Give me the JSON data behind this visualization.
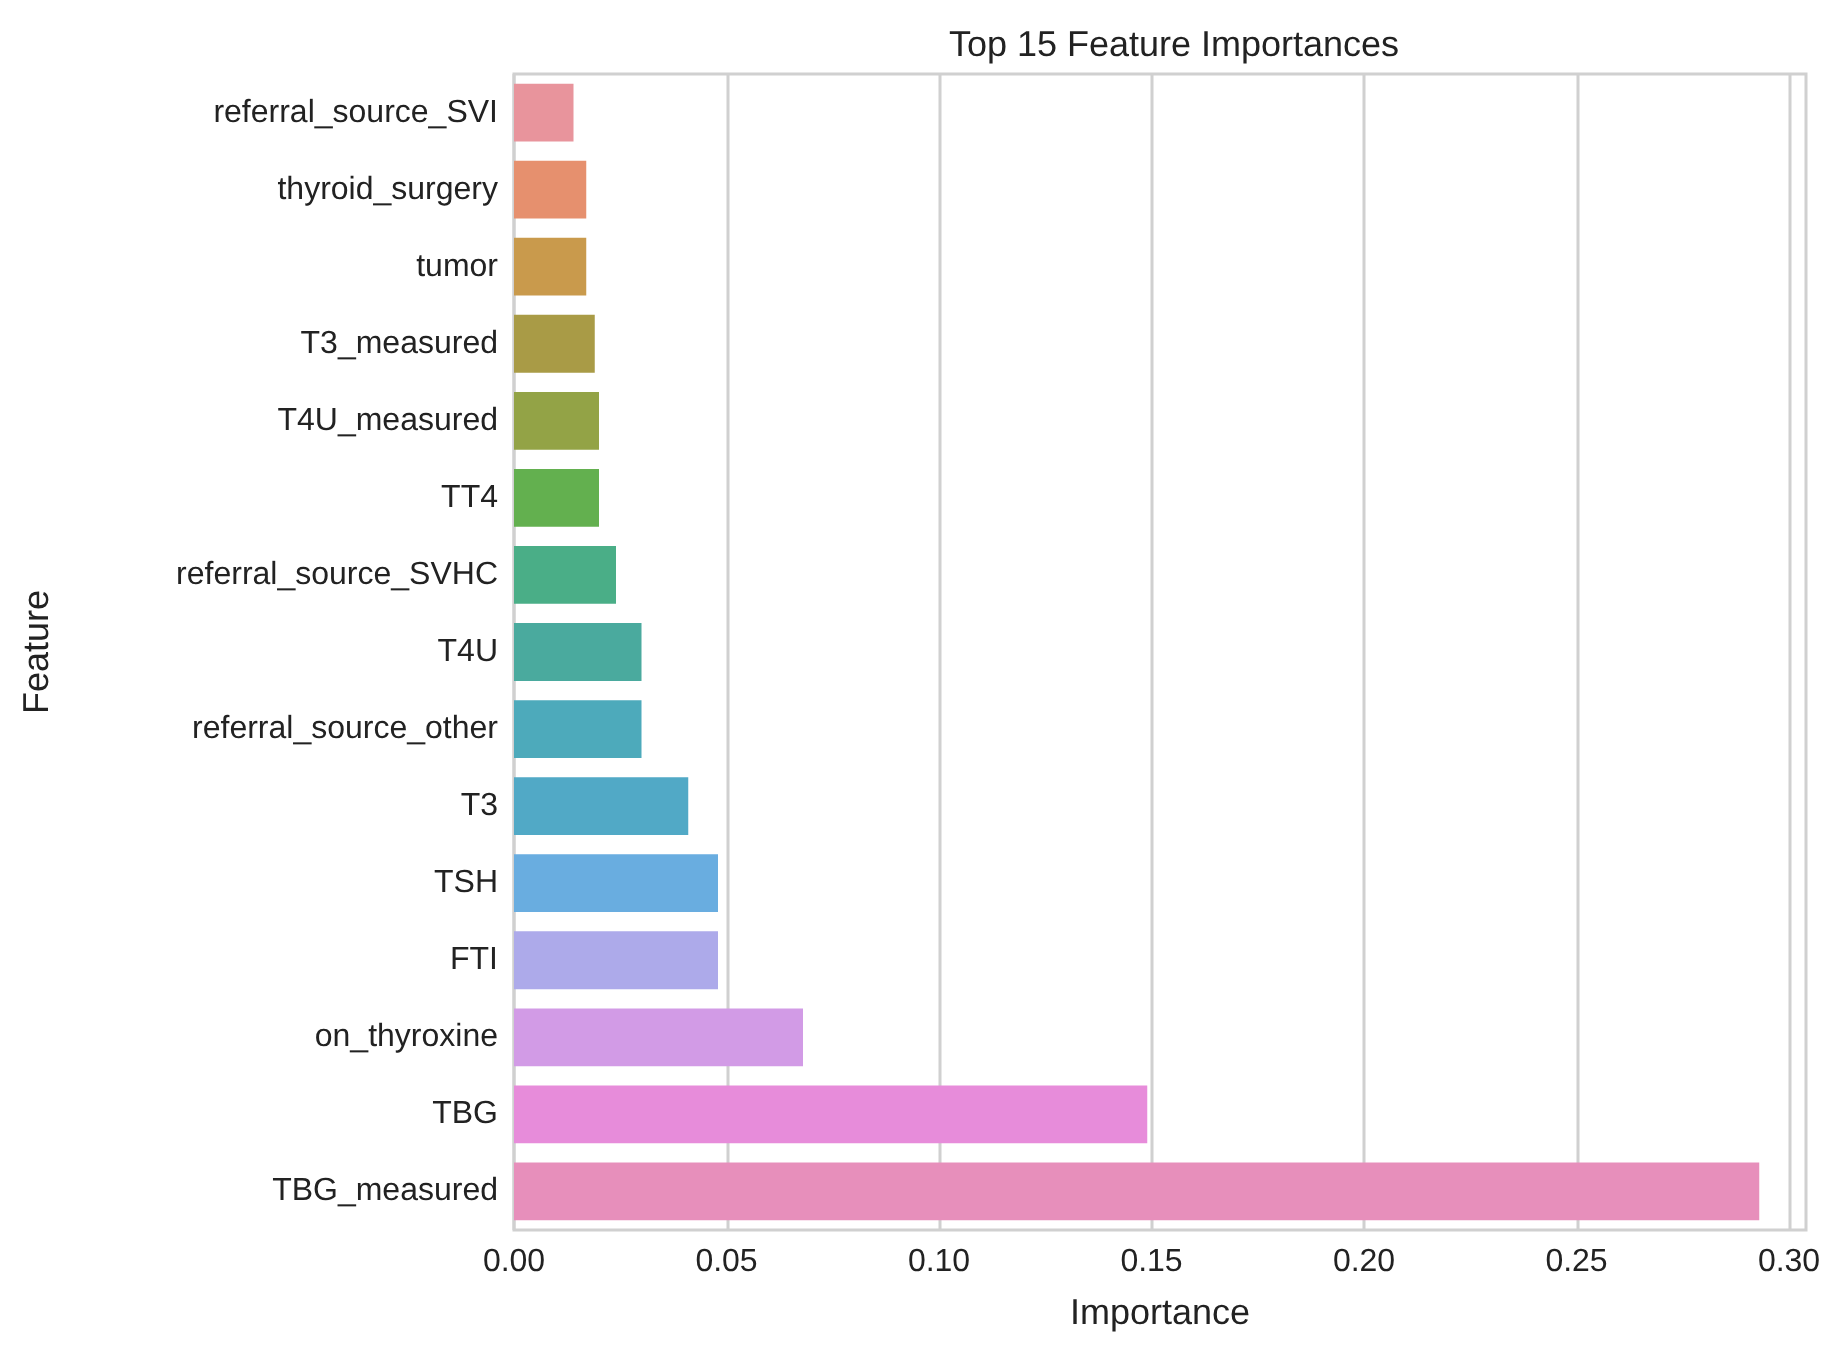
{
  "chart_data": {
    "type": "bar",
    "orientation": "horizontal",
    "title": "Top 15 Feature Importances",
    "xlabel": "Importance",
    "ylabel": "Feature",
    "categories": [
      "referral_source_SVI",
      "thyroid_surgery",
      "tumor",
      "T3_measured",
      "T4U_measured",
      "TT4",
      "referral_source_SVHC",
      "T4U",
      "referral_source_other",
      "T3",
      "TSH",
      "FTI",
      "on_thyroxine",
      "TBG",
      "TBG_measured"
    ],
    "values": [
      0.014,
      0.017,
      0.017,
      0.019,
      0.02,
      0.02,
      0.024,
      0.03,
      0.03,
      0.041,
      0.048,
      0.048,
      0.068,
      0.149,
      0.293
    ],
    "colors": [
      "#e8949c",
      "#e6906e",
      "#c99a4c",
      "#a99b46",
      "#93a346",
      "#63b04f",
      "#4aae87",
      "#4aaa9e",
      "#4daabb",
      "#51a9c6",
      "#69ade0",
      "#adaaea",
      "#d29be6",
      "#e78cda",
      "#e78fbb"
    ],
    "xlim": [
      0,
      0.304
    ],
    "xticks": [
      {
        "value": 0,
        "label": "0.00"
      },
      {
        "value": 0.05,
        "label": "0.05"
      },
      {
        "value": 0.1,
        "label": "0.10"
      },
      {
        "value": 0.15,
        "label": "0.15"
      },
      {
        "value": 0.2,
        "label": "0.20"
      },
      {
        "value": 0.25,
        "label": "0.25"
      },
      {
        "value": 0.3,
        "label": "0.30"
      }
    ],
    "grid": "x"
  }
}
